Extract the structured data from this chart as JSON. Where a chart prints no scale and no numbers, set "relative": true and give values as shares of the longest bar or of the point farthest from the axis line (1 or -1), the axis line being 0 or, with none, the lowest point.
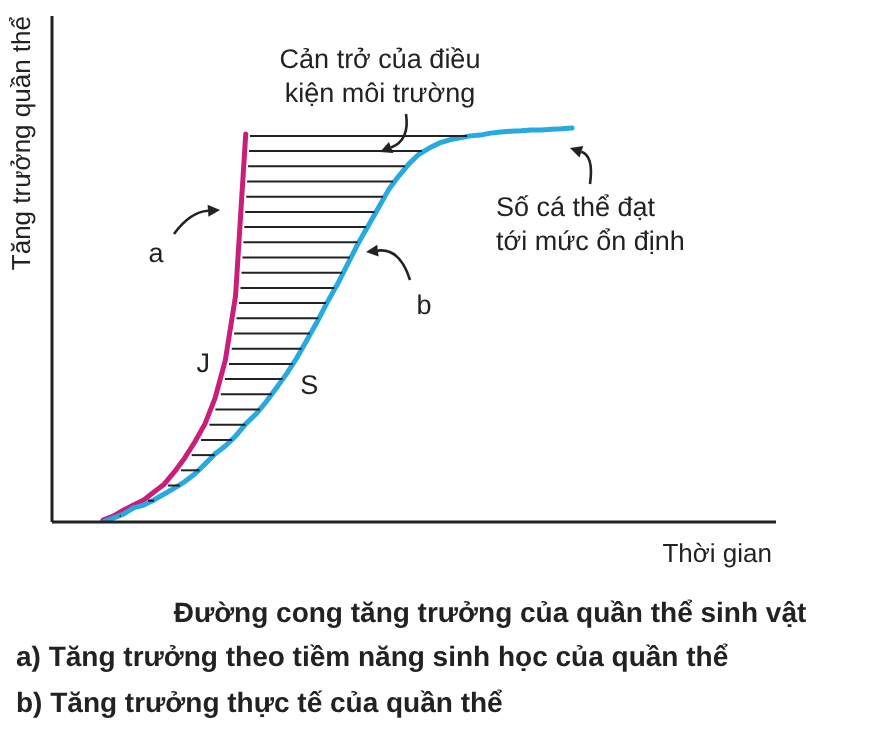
{
  "chart_data": {
    "type": "line",
    "relative": true,
    "title": "Đường cong tăng trưởng của quần thể sinh vật",
    "xlabel": "Thời gian",
    "ylabel": "Tăng trưởng quần thể",
    "marker": "none",
    "line_style": "solid",
    "categories": [
      null,
      null,
      null,
      null,
      null,
      null,
      null,
      null,
      null,
      null,
      null,
      null,
      null,
      null,
      null,
      null,
      null,
      null,
      null,
      null,
      null,
      null,
      null,
      null,
      null,
      null,
      null,
      null,
      null,
      null,
      null,
      null,
      null,
      null,
      null,
      null,
      null,
      null,
      null,
      null,
      null,
      null,
      null,
      null,
      null,
      null,
      null,
      null,
      null,
      null,
      null,
      null,
      null,
      null,
      null,
      null,
      null,
      null,
      null,
      null,
      null,
      null,
      null,
      null,
      null,
      null,
      null,
      null,
      null,
      null,
      null,
      null
    ],
    "series": [
      {
        "name": "J",
        "color": "#c8207a",
        "values": [
          null,
          null,
          null,
          null,
          null,
          0.005,
          0.015,
          0.03,
          0.043,
          0.056,
          0.076,
          0.096,
          0.127,
          0.162,
          0.203,
          0.249,
          0.315,
          0.411,
          0.574,
          0.985,
          null,
          null,
          null,
          null,
          null,
          null,
          null,
          null,
          null,
          null,
          null,
          null,
          null,
          null,
          null,
          null,
          null,
          null,
          null,
          null,
          null,
          null,
          null,
          null,
          null,
          null,
          null,
          null,
          null,
          null,
          null,
          null,
          null,
          null,
          null,
          null,
          null,
          null,
          null,
          null,
          null,
          null,
          null,
          null,
          null,
          null,
          null,
          null,
          null,
          null,
          null,
          null
        ]
      },
      {
        "name": "S",
        "color": "#27a9e1",
        "values": [
          null,
          null,
          null,
          null,
          null,
          0,
          0.01,
          0.02,
          0.036,
          0.043,
          0.056,
          0.071,
          0.086,
          0.102,
          0.122,
          0.147,
          0.173,
          0.193,
          0.218,
          0.249,
          0.274,
          0.305,
          0.34,
          0.376,
          0.416,
          0.462,
          0.508,
          0.558,
          0.604,
          0.655,
          0.706,
          0.751,
          0.797,
          0.843,
          0.878,
          0.909,
          0.934,
          0.949,
          0.962,
          0.97,
          0.975,
          0.98,
          0.982,
          0.987,
          0.99,
          0.992,
          0.993,
          0.995,
          0.995,
          0.997,
          0.998,
          1,
          null,
          null,
          null,
          null,
          null,
          null,
          null,
          null,
          null,
          null,
          null,
          null,
          null,
          null,
          null,
          null,
          null,
          null,
          null,
          null
        ]
      }
    ],
    "annotations": [
      "Cản trở của điều kiện môi trường",
      "a",
      "b",
      "Số cá thể đạt tới mức ổn định",
      "a) Tăng trưởng theo tiềm năng sinh học của quần thể",
      "b) Tăng trưởng thực tế của quần thể"
    ]
  }
}
